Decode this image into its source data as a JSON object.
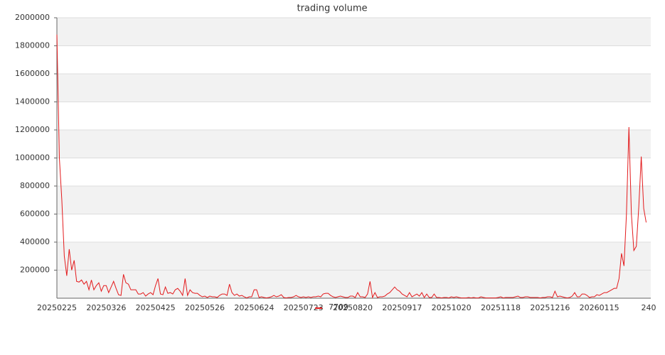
{
  "chart_data": {
    "type": "line",
    "title": "trading volume",
    "categories": [
      "20250225",
      null,
      null,
      null,
      null,
      null,
      null,
      null,
      null,
      null,
      null,
      null,
      null,
      null,
      null,
      null,
      null,
      null,
      null,
      null,
      "20250326",
      null,
      null,
      null,
      null,
      null,
      null,
      null,
      null,
      null,
      null,
      null,
      null,
      null,
      null,
      null,
      null,
      null,
      null,
      null,
      "20250425",
      null,
      null,
      null,
      null,
      null,
      null,
      null,
      null,
      null,
      null,
      null,
      null,
      null,
      null,
      null,
      null,
      null,
      null,
      null,
      "20250526",
      null,
      null,
      null,
      null,
      null,
      null,
      null,
      null,
      null,
      null,
      null,
      null,
      null,
      null,
      null,
      null,
      null,
      null,
      null,
      "20250624",
      null,
      null,
      null,
      null,
      null,
      null,
      null,
      null,
      null,
      null,
      null,
      null,
      null,
      null,
      null,
      null,
      null,
      null,
      null,
      "20250723",
      null,
      null,
      null,
      null,
      null,
      null,
      null,
      null,
      null,
      null,
      null,
      null,
      null,
      null,
      null,
      null,
      null,
      null,
      null,
      "20250820",
      null,
      null,
      null,
      null,
      null,
      null,
      null,
      null,
      null,
      null,
      null,
      null,
      null,
      null,
      null,
      null,
      null,
      null,
      null,
      "20250917",
      null,
      null,
      null,
      null,
      null,
      null,
      null,
      null,
      null,
      null,
      null,
      null,
      null,
      null,
      null,
      null,
      null,
      null,
      null,
      "20251020",
      null,
      null,
      null,
      null,
      null,
      null,
      null,
      null,
      null,
      null,
      null,
      null,
      null,
      null,
      null,
      null,
      null,
      null,
      null,
      "20251118",
      null,
      null,
      null,
      null,
      null,
      null,
      null,
      null,
      null,
      null,
      null,
      null,
      null,
      null,
      null,
      null,
      null,
      null,
      null,
      "20251216",
      null,
      null,
      null,
      null,
      null,
      null,
      null,
      null,
      null,
      null,
      null,
      null,
      null,
      null,
      null,
      null,
      null,
      null,
      null,
      "20260115",
      null,
      null,
      null,
      null,
      null,
      null,
      null,
      null,
      null,
      null,
      null,
      null,
      null,
      null,
      null,
      null,
      null,
      null,
      null,
      "240"
    ],
    "series": [
      {
        "name": "7709",
        "color": "#e31a1c",
        "values": [
          1880000,
          1000000,
          700000,
          300000,
          160000,
          350000,
          200000,
          270000,
          120000,
          115000,
          130000,
          100000,
          120000,
          60000,
          130000,
          60000,
          90000,
          110000,
          50000,
          90000,
          90000,
          40000,
          80000,
          120000,
          70000,
          25000,
          20000,
          170000,
          110000,
          100000,
          60000,
          60000,
          60000,
          30000,
          30000,
          40000,
          15000,
          30000,
          40000,
          25000,
          90000,
          140000,
          30000,
          25000,
          80000,
          35000,
          40000,
          30000,
          60000,
          70000,
          50000,
          20000,
          140000,
          20000,
          60000,
          40000,
          35000,
          35000,
          20000,
          10000,
          15000,
          5000,
          15000,
          10000,
          10000,
          5000,
          20000,
          30000,
          30000,
          20000,
          100000,
          40000,
          20000,
          30000,
          15000,
          20000,
          10000,
          2000,
          10000,
          10000,
          60000,
          60000,
          5000,
          10000,
          5000,
          2000,
          5000,
          10000,
          20000,
          10000,
          15000,
          25000,
          5000,
          2000,
          5000,
          5000,
          10000,
          20000,
          10000,
          5000,
          10000,
          5000,
          10000,
          5000,
          10000,
          10000,
          15000,
          10000,
          30000,
          35000,
          35000,
          20000,
          10000,
          5000,
          10000,
          15000,
          10000,
          5000,
          5000,
          15000,
          15000,
          5000,
          40000,
          10000,
          10000,
          5000,
          30000,
          120000,
          5000,
          40000,
          5000,
          10000,
          10000,
          15000,
          30000,
          40000,
          60000,
          80000,
          60000,
          50000,
          30000,
          20000,
          10000,
          40000,
          10000,
          20000,
          30000,
          15000,
          40000,
          5000,
          30000,
          5000,
          5000,
          30000,
          5000,
          5000,
          2000,
          5000,
          5000,
          2000,
          10000,
          5000,
          10000,
          5000,
          2000,
          2000,
          2000,
          5000,
          2000,
          5000,
          2000,
          2000,
          10000,
          5000,
          2000,
          2000,
          2000,
          2000,
          2000,
          5000,
          10000,
          2000,
          5000,
          5000,
          5000,
          5000,
          10000,
          15000,
          5000,
          5000,
          10000,
          10000,
          5000,
          5000,
          5000,
          5000,
          2000,
          5000,
          5000,
          10000,
          10000,
          5000,
          50000,
          10000,
          15000,
          10000,
          5000,
          2000,
          5000,
          15000,
          40000,
          10000,
          10000,
          30000,
          30000,
          20000,
          5000,
          10000,
          10000,
          25000,
          20000,
          30000,
          40000,
          40000,
          50000,
          60000,
          70000,
          70000,
          140000,
          320000,
          230000,
          600000,
          1220000,
          600000,
          340000,
          370000,
          650000,
          1010000,
          640000,
          540000,
          null
        ]
      }
    ],
    "ylim": [
      0,
      2000000
    ],
    "yticks": [
      200000,
      400000,
      600000,
      800000,
      1000000,
      1200000,
      1400000,
      1600000,
      1800000,
      2000000
    ],
    "grid": true
  }
}
